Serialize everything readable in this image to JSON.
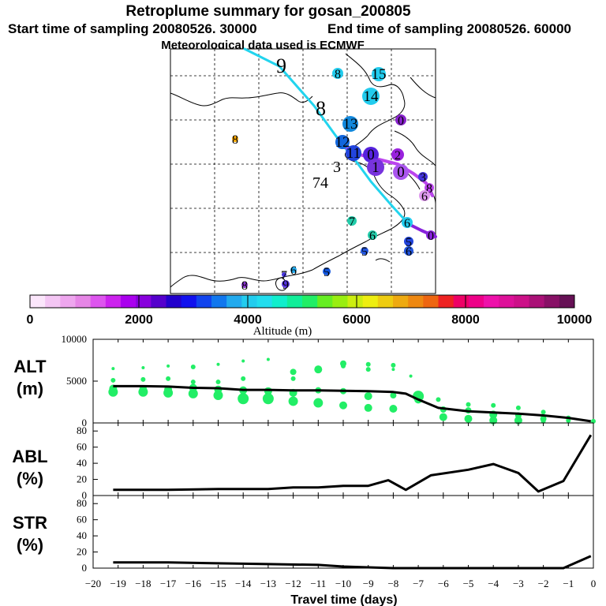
{
  "header": {
    "title": "Retroplume summary for gosan_200805",
    "start_time": "Start time of sampling 20080526. 30000",
    "end_time": "End time of sampling 20080526. 60000",
    "met_data": "Meteorological data used is ECMWF"
  },
  "colors": {
    "plume_cyan": "#22d4ee",
    "plume_violet": "#bb44ee",
    "alt_dots": "#22ee66",
    "lines": "#000000"
  },
  "map": {
    "track_labels": [
      "9",
      "8",
      "3",
      "74"
    ],
    "dots": [
      {
        "label": "8",
        "color": "#22ccee",
        "r": 7
      },
      {
        "label": "15",
        "color": "#22ccee",
        "r": 9
      },
      {
        "label": "14",
        "color": "#22ccee",
        "r": 11
      },
      {
        "label": "13",
        "color": "#1188dd",
        "r": 10
      },
      {
        "label": "0",
        "color": "#8822cc",
        "r": 7
      },
      {
        "label": "8",
        "color": "#ffaa00",
        "r": 4
      },
      {
        "label": "12",
        "color": "#1166dd",
        "r": 9
      },
      {
        "label": "11",
        "color": "#2244dd",
        "r": 10
      },
      {
        "label": "0",
        "color": "#5522dd",
        "r": 10
      },
      {
        "label": "2",
        "color": "#9922dd",
        "r": 8
      },
      {
        "label": "1",
        "color": "#7733dd",
        "r": 11
      },
      {
        "label": "0",
        "color": "#aa55ee",
        "r": 10
      },
      {
        "label": "3",
        "color": "#4433dd",
        "r": 6
      },
      {
        "label": "8",
        "color": "#bb44ee",
        "r": 6
      },
      {
        "label": "6",
        "color": "#dd99ee",
        "r": 7
      },
      {
        "label": "7",
        "color": "#22ccaa",
        "r": 6
      },
      {
        "label": "6",
        "color": "#22ccaa",
        "r": 6
      },
      {
        "label": "6",
        "color": "#22ccee",
        "r": 7
      },
      {
        "label": "0",
        "color": "#8822dd",
        "r": 6
      },
      {
        "label": "5",
        "color": "#2244dd",
        "r": 6
      },
      {
        "label": "5",
        "color": "#2255dd",
        "r": 5
      },
      {
        "label": "6",
        "color": "#2255dd",
        "r": 6
      },
      {
        "label": "5",
        "color": "#1155dd",
        "r": 5
      },
      {
        "label": "6",
        "color": "#22aaee",
        "r": 4
      },
      {
        "label": "8",
        "color": "#8833cc",
        "r": 4
      },
      {
        "label": "9",
        "color": "#5533dd",
        "r": 5
      },
      {
        "label": "7",
        "color": "#4433dd",
        "r": 3
      }
    ]
  },
  "colorbar": {
    "tick_labels": [
      "0",
      "2000",
      "4000",
      "6000",
      "8000",
      "10000"
    ],
    "label": "Altitude (m)",
    "colors": [
      "#fbe6fb",
      "#f4c6f4",
      "#eea6ee",
      "#e686e6",
      "#dd55ee",
      "#cc22ee",
      "#aa00ee",
      "#8800dd",
      "#5500cc",
      "#2200cc",
      "#1111ee",
      "#1144ee",
      "#1177ee",
      "#22aaee",
      "#22ccee",
      "#22ddee",
      "#11eecc",
      "#11ee99",
      "#22ee66",
      "#66ee22",
      "#99ee11",
      "#ccee11",
      "#eeee11",
      "#eecc11",
      "#eeaa11",
      "#ee8811",
      "#ee6611",
      "#ee2222",
      "#ee0066",
      "#ee0088",
      "#ee11aa",
      "#dd1199",
      "#cc1188",
      "#aa1177",
      "#881166",
      "#661155"
    ]
  },
  "chart_data": [
    {
      "type": "line",
      "name": "ALT",
      "label_top": "ALT",
      "label_bottom": "(m)",
      "x": [
        -19.2,
        -18,
        -17,
        -16,
        -15,
        -14,
        -13,
        -12,
        -11,
        -10,
        -9,
        -8,
        -7.5,
        -7,
        -6.2,
        -5,
        -4,
        -3,
        -2,
        -1,
        -0.1
      ],
      "values": [
        4400,
        4400,
        4350,
        4200,
        4150,
        3950,
        3950,
        3900,
        3900,
        3850,
        3800,
        3700,
        3500,
        2800,
        1800,
        1400,
        1250,
        1100,
        900,
        600,
        200
      ],
      "points": [
        {
          "x": -19.2,
          "y": 6500,
          "r": 2
        },
        {
          "x": -19.2,
          "y": 5100,
          "r": 3
        },
        {
          "x": -19.2,
          "y": 4100,
          "r": 5
        },
        {
          "x": -19.2,
          "y": 3700,
          "r": 6
        },
        {
          "x": -18,
          "y": 6600,
          "r": 2
        },
        {
          "x": -18,
          "y": 5200,
          "r": 3
        },
        {
          "x": -18,
          "y": 4000,
          "r": 5
        },
        {
          "x": -18,
          "y": 3700,
          "r": 6
        },
        {
          "x": -17,
          "y": 6800,
          "r": 2
        },
        {
          "x": -17,
          "y": 5300,
          "r": 3
        },
        {
          "x": -17,
          "y": 4000,
          "r": 5
        },
        {
          "x": -17,
          "y": 3600,
          "r": 6
        },
        {
          "x": -16,
          "y": 6700,
          "r": 3
        },
        {
          "x": -16,
          "y": 4900,
          "r": 3
        },
        {
          "x": -16,
          "y": 4200,
          "r": 5
        },
        {
          "x": -16,
          "y": 3500,
          "r": 6
        },
        {
          "x": -15,
          "y": 7000,
          "r": 2
        },
        {
          "x": -15,
          "y": 4900,
          "r": 3
        },
        {
          "x": -15,
          "y": 4000,
          "r": 5
        },
        {
          "x": -15,
          "y": 3300,
          "r": 6
        },
        {
          "x": -14,
          "y": 7400,
          "r": 2
        },
        {
          "x": -14,
          "y": 5300,
          "r": 3
        },
        {
          "x": -14,
          "y": 3900,
          "r": 5
        },
        {
          "x": -14,
          "y": 2900,
          "r": 7
        },
        {
          "x": -13,
          "y": 7600,
          "r": 2
        },
        {
          "x": -13,
          "y": 3800,
          "r": 5
        },
        {
          "x": -13,
          "y": 2900,
          "r": 7
        },
        {
          "x": -12,
          "y": 6100,
          "r": 4
        },
        {
          "x": -12,
          "y": 5300,
          "r": 3
        },
        {
          "x": -12,
          "y": 3600,
          "r": 5
        },
        {
          "x": -12,
          "y": 2600,
          "r": 6
        },
        {
          "x": -11,
          "y": 6400,
          "r": 5
        },
        {
          "x": -11,
          "y": 3900,
          "r": 4
        },
        {
          "x": -11,
          "y": 2400,
          "r": 6
        },
        {
          "x": -10,
          "y": 7100,
          "r": 4
        },
        {
          "x": -10,
          "y": 6800,
          "r": 3
        },
        {
          "x": -10,
          "y": 3800,
          "r": 4
        },
        {
          "x": -10,
          "y": 2100,
          "r": 5
        },
        {
          "x": -9,
          "y": 7000,
          "r": 3
        },
        {
          "x": -9,
          "y": 6400,
          "r": 3
        },
        {
          "x": -9,
          "y": 3200,
          "r": 5
        },
        {
          "x": -9,
          "y": 1800,
          "r": 5
        },
        {
          "x": -8,
          "y": 6900,
          "r": 3
        },
        {
          "x": -8,
          "y": 6400,
          "r": 2
        },
        {
          "x": -8,
          "y": 3300,
          "r": 4
        },
        {
          "x": -8,
          "y": 1700,
          "r": 5
        },
        {
          "x": -7.3,
          "y": 5600,
          "r": 2
        },
        {
          "x": -7,
          "y": 3200,
          "r": 7
        },
        {
          "x": -7,
          "y": 2800,
          "r": 5
        },
        {
          "x": -6.2,
          "y": 2800,
          "r": 3
        },
        {
          "x": -6,
          "y": 1600,
          "r": 4
        },
        {
          "x": -6,
          "y": 700,
          "r": 5
        },
        {
          "x": -5,
          "y": 2200,
          "r": 3
        },
        {
          "x": -5,
          "y": 1500,
          "r": 4
        },
        {
          "x": -5,
          "y": 500,
          "r": 5
        },
        {
          "x": -4,
          "y": 2100,
          "r": 3
        },
        {
          "x": -4,
          "y": 1000,
          "r": 5
        },
        {
          "x": -4,
          "y": 300,
          "r": 5
        },
        {
          "x": -3,
          "y": 1800,
          "r": 3
        },
        {
          "x": -3,
          "y": 900,
          "r": 4
        },
        {
          "x": -3,
          "y": 300,
          "r": 5
        },
        {
          "x": -2,
          "y": 1300,
          "r": 3
        },
        {
          "x": -2,
          "y": 500,
          "r": 4
        },
        {
          "x": -2,
          "y": 200,
          "r": 3
        },
        {
          "x": -1,
          "y": 600,
          "r": 3
        },
        {
          "x": -1,
          "y": 300,
          "r": 3
        },
        {
          "x": 0,
          "y": 200,
          "r": 3
        }
      ],
      "ylim": [
        0,
        10000
      ],
      "yticks": [
        "0",
        "5000",
        "10000"
      ]
    },
    {
      "type": "line",
      "name": "ABL",
      "label_top": "ABL",
      "label_bottom": "(%)",
      "x": [
        -19.2,
        -17,
        -15,
        -13,
        -12,
        -11,
        -10,
        -9,
        -8.2,
        -7.5,
        -6.5,
        -5,
        -4,
        -3,
        -2.2,
        -1.2,
        -0.1
      ],
      "values": [
        7,
        7,
        8,
        8,
        10,
        10,
        12,
        12,
        19,
        7,
        25,
        32,
        39,
        28,
        5,
        18,
        75
      ],
      "ylim": [
        0,
        90
      ],
      "yticks": [
        "0",
        "20",
        "40",
        "60",
        "80"
      ]
    },
    {
      "type": "line",
      "name": "STR",
      "label_top": "STR",
      "label_bottom": "(%)",
      "x": [
        -19.2,
        -17,
        -15,
        -13,
        -11,
        -10,
        -9,
        -8,
        -7,
        -2,
        -1.2,
        -0.1
      ],
      "values": [
        7,
        7,
        6,
        5,
        4,
        2,
        1,
        0,
        0,
        0,
        0,
        15
      ],
      "ylim": [
        0,
        90
      ],
      "yticks": [
        "0",
        "20",
        "40",
        "60",
        "80"
      ],
      "xlabel": "Travel time (days)",
      "xlim": [
        -20,
        0
      ],
      "xticks": [
        "−20",
        "−19",
        "−18",
        "−17",
        "−16",
        "−15",
        "−14",
        "−13",
        "−12",
        "−11",
        "−10",
        "−9",
        "−8",
        "−7",
        "−6",
        "−5",
        "−4",
        "−3",
        "−2",
        "−1",
        "0"
      ]
    }
  ]
}
